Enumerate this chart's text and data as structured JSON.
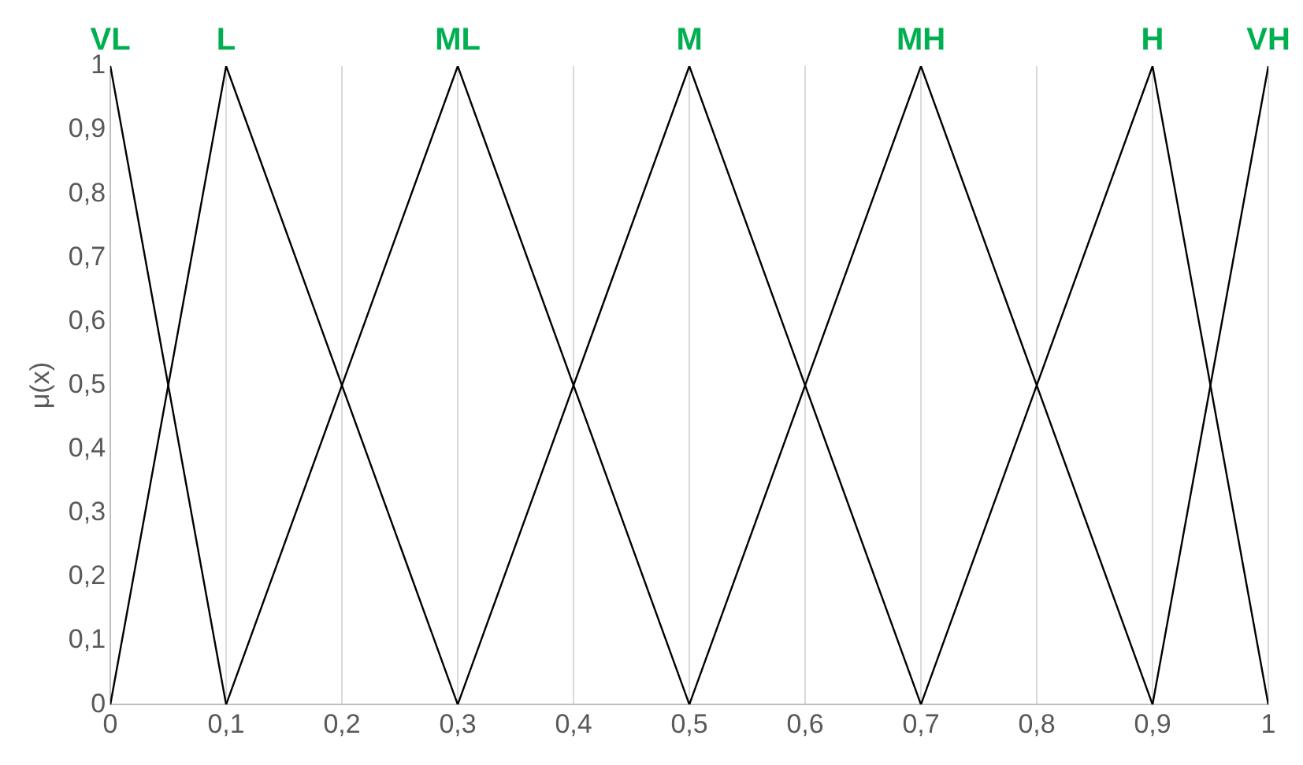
{
  "chart_data": {
    "type": "line",
    "ylabel": "μ(x)",
    "marker": "none",
    "line_style": "solid",
    "grid": "x",
    "legend": false,
    "xlim": [
      0,
      1
    ],
    "xticks": [
      0,
      {
        "value": 0.1,
        "label": "0,1"
      },
      {
        "value": 0.2,
        "label": "0,2"
      },
      {
        "value": 0.3,
        "label": "0,3"
      },
      {
        "value": 0.4,
        "label": "0,4"
      },
      {
        "value": 0.5,
        "label": "0,5"
      },
      {
        "value": 0.6,
        "label": "0,6"
      },
      {
        "value": 0.7,
        "label": "0,7"
      },
      {
        "value": 0.8,
        "label": "0,8"
      },
      {
        "value": 0.9,
        "label": "0,9"
      },
      1
    ],
    "ylim": [
      0,
      1
    ],
    "yticks": [
      0,
      {
        "value": 0.1,
        "label": "0,1"
      },
      {
        "value": 0.2,
        "label": "0,2"
      },
      {
        "value": 0.3,
        "label": "0,3"
      },
      {
        "value": 0.4,
        "label": "0,4"
      },
      {
        "value": 0.5,
        "label": "0,5"
      },
      {
        "value": 0.6,
        "label": "0,6"
      },
      {
        "value": 0.7,
        "label": "0,7"
      },
      {
        "value": 0.8,
        "label": "0,8"
      },
      {
        "value": 0.9,
        "label": "0,9"
      },
      1
    ],
    "series": [
      {
        "name": "VL",
        "color": "#000000",
        "x": [
          0,
          0.1
        ],
        "values": [
          1,
          0
        ]
      },
      {
        "name": "L",
        "color": "#000000",
        "x": [
          0,
          0.1,
          0.3
        ],
        "values": [
          0,
          1,
          0
        ]
      },
      {
        "name": "ML",
        "color": "#000000",
        "x": [
          0.1,
          0.3,
          0.5
        ],
        "values": [
          0,
          1,
          0
        ]
      },
      {
        "name": "M",
        "color": "#000000",
        "x": [
          0.3,
          0.5,
          0.7
        ],
        "values": [
          0,
          1,
          0
        ]
      },
      {
        "name": "MH",
        "color": "#000000",
        "x": [
          0.5,
          0.7,
          0.9
        ],
        "values": [
          0,
          1,
          0
        ]
      },
      {
        "name": "H",
        "color": "#000000",
        "x": [
          0.7,
          0.9,
          1
        ],
        "values": [
          0,
          1,
          0
        ]
      },
      {
        "name": "VH",
        "color": "#000000",
        "x": [
          0.9,
          1
        ],
        "values": [
          0,
          1
        ]
      }
    ]
  }
}
